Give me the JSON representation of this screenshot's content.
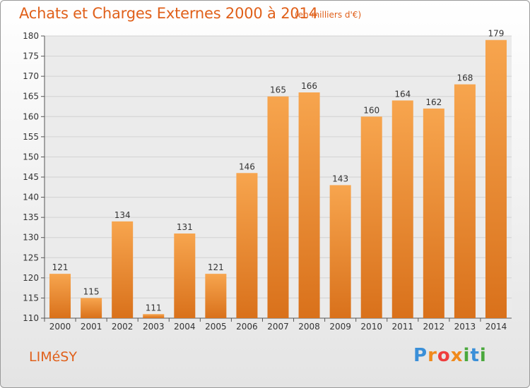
{
  "chart_data": {
    "type": "bar",
    "title": "Achats et Charges Externes 2000 à 2014",
    "subtitle": "(en milliers d'€)",
    "categories": [
      "2000",
      "2001",
      "2002",
      "2003",
      "2004",
      "2005",
      "2006",
      "2007",
      "2008",
      "2009",
      "2010",
      "2011",
      "2012",
      "2013",
      "2014"
    ],
    "values": [
      121,
      115,
      134,
      111,
      131,
      121,
      146,
      165,
      166,
      143,
      160,
      164,
      162,
      168,
      179
    ],
    "ylim": [
      110,
      180
    ],
    "yticks": [
      110,
      115,
      120,
      125,
      130,
      135,
      140,
      145,
      150,
      155,
      160,
      165,
      170,
      175,
      180
    ],
    "grid": true,
    "bar_color_top": "#f7a54e",
    "bar_color_bottom": "#d9711b",
    "grid_color": "#d2d2d2"
  },
  "place_name": "LIMéSY",
  "logo": {
    "letters": [
      "P",
      "r",
      "o",
      "x",
      "i",
      "t",
      "i"
    ],
    "colors": [
      "#3a8fd8",
      "#f08a1c",
      "#ef3e3e",
      "#f08a1c",
      "#4aa83c",
      "#3a8fd8",
      "#4aa83c"
    ]
  },
  "text_color": "#e0601a"
}
